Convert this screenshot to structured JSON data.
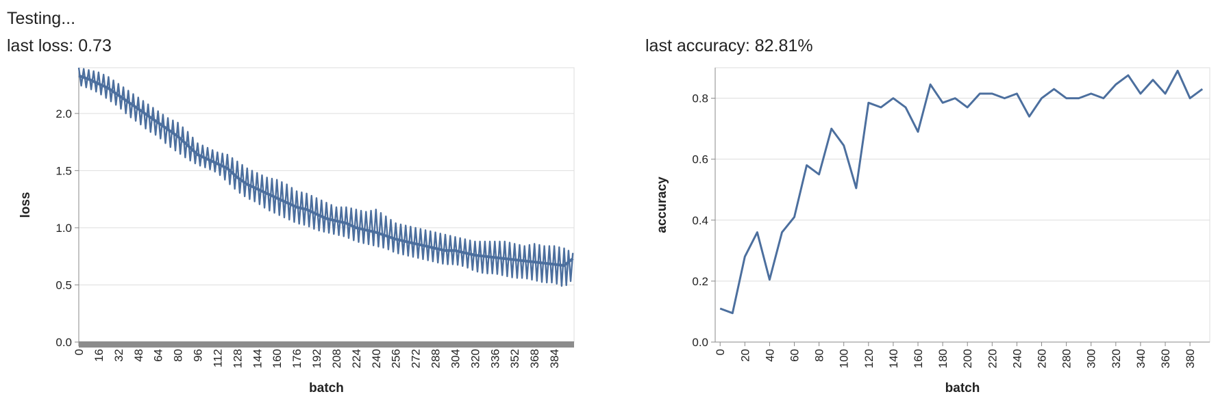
{
  "status": {
    "text": "Testing..."
  },
  "loss_panel": {
    "last_label": "last loss: 0.73"
  },
  "accuracy_panel": {
    "last_label": "last accuracy: 82.81%"
  },
  "colors": {
    "series": "#4c6f9e",
    "grid": "#dddddd",
    "axis": "#888888",
    "text": "#222222"
  },
  "chart_data": [
    {
      "type": "area",
      "title": "",
      "xlabel": "batch",
      "ylabel": "loss",
      "xlim": [
        0,
        400
      ],
      "ylim": [
        0,
        2.4
      ],
      "x_ticks": [
        0,
        16,
        32,
        48,
        64,
        80,
        96,
        112,
        128,
        144,
        160,
        176,
        192,
        208,
        224,
        240,
        256,
        272,
        288,
        304,
        320,
        336,
        352,
        368,
        384
      ],
      "y_ticks": [
        0.0,
        0.5,
        1.0,
        1.5,
        2.0
      ],
      "x_tick_labels": [
        "0",
        "16",
        "32",
        "48",
        "64",
        "80",
        "96",
        "112",
        "128",
        "144",
        "160",
        "176",
        "192",
        "208",
        "224",
        "240",
        "256",
        "272",
        "288",
        "304",
        "320",
        "336",
        "352",
        "368",
        "384"
      ],
      "y_tick_labels": [
        "0.0",
        "0.5",
        "1.0",
        "1.5",
        "2.0"
      ],
      "grid": true,
      "series": [
        {
          "x": [
            0,
            8,
            16,
            24,
            32,
            40,
            48,
            56,
            64,
            72,
            80,
            88,
            96,
            104,
            112,
            120,
            128,
            136,
            144,
            152,
            160,
            168,
            176,
            184,
            192,
            200,
            208,
            216,
            224,
            232,
            240,
            248,
            256,
            264,
            272,
            280,
            288,
            296,
            304,
            312,
            320,
            328,
            336,
            344,
            352,
            360,
            368,
            376,
            384,
            392,
            399
          ],
          "mid": [
            2.33,
            2.3,
            2.26,
            2.22,
            2.16,
            2.1,
            2.04,
            1.98,
            1.92,
            1.86,
            1.8,
            1.72,
            1.64,
            1.6,
            1.56,
            1.52,
            1.44,
            1.38,
            1.34,
            1.3,
            1.26,
            1.22,
            1.18,
            1.16,
            1.12,
            1.08,
            1.06,
            1.04,
            1.0,
            0.98,
            0.96,
            0.93,
            0.9,
            0.88,
            0.86,
            0.84,
            0.82,
            0.8,
            0.8,
            0.78,
            0.76,
            0.75,
            0.74,
            0.73,
            0.72,
            0.71,
            0.7,
            0.69,
            0.68,
            0.67,
            0.73
          ],
          "low": [
            2.25,
            2.22,
            2.18,
            2.12,
            2.06,
            1.98,
            1.92,
            1.85,
            1.8,
            1.72,
            1.66,
            1.6,
            1.55,
            1.52,
            1.48,
            1.4,
            1.32,
            1.26,
            1.22,
            1.16,
            1.12,
            1.08,
            1.04,
            1.02,
            0.98,
            0.96,
            0.94,
            0.92,
            0.88,
            0.86,
            0.84,
            0.82,
            0.78,
            0.76,
            0.74,
            0.72,
            0.7,
            0.68,
            0.68,
            0.66,
            0.62,
            0.6,
            0.6,
            0.58,
            0.56,
            0.56,
            0.54,
            0.52,
            0.52,
            0.48,
            0.55
          ],
          "high": [
            2.4,
            2.38,
            2.36,
            2.32,
            2.26,
            2.2,
            2.14,
            2.08,
            2.02,
            1.96,
            1.92,
            1.84,
            1.74,
            1.7,
            1.66,
            1.64,
            1.58,
            1.52,
            1.48,
            1.44,
            1.42,
            1.38,
            1.32,
            1.3,
            1.26,
            1.22,
            1.18,
            1.18,
            1.16,
            1.14,
            1.16,
            1.1,
            1.04,
            1.02,
            1.0,
            0.98,
            0.96,
            0.94,
            0.92,
            0.9,
            0.88,
            0.88,
            0.88,
            0.88,
            0.86,
            0.84,
            0.86,
            0.84,
            0.84,
            0.82,
            0.78
          ]
        }
      ]
    },
    {
      "type": "line",
      "title": "",
      "xlabel": "batch",
      "ylabel": "accuracy",
      "xlim": [
        -4,
        396
      ],
      "ylim": [
        0,
        0.9
      ],
      "x_ticks": [
        0,
        20,
        40,
        60,
        80,
        100,
        120,
        140,
        160,
        180,
        200,
        220,
        240,
        260,
        280,
        300,
        320,
        340,
        360,
        380
      ],
      "y_ticks": [
        0.0,
        0.2,
        0.4,
        0.6,
        0.8
      ],
      "x_tick_labels": [
        "0",
        "20",
        "40",
        "60",
        "80",
        "100",
        "120",
        "140",
        "160",
        "180",
        "200",
        "220",
        "240",
        "260",
        "280",
        "300",
        "320",
        "340",
        "360",
        "380"
      ],
      "y_tick_labels": [
        "0.0",
        "0.2",
        "0.4",
        "0.6",
        "0.8"
      ],
      "grid": true,
      "series": [
        {
          "x": [
            0,
            10,
            20,
            30,
            40,
            50,
            60,
            70,
            80,
            90,
            100,
            110,
            120,
            130,
            140,
            150,
            160,
            170,
            180,
            190,
            200,
            210,
            220,
            230,
            240,
            250,
            260,
            270,
            280,
            290,
            300,
            310,
            320,
            330,
            340,
            350,
            360,
            370,
            380,
            390
          ],
          "y": [
            0.11,
            0.095,
            0.28,
            0.36,
            0.205,
            0.36,
            0.41,
            0.58,
            0.55,
            0.7,
            0.645,
            0.505,
            0.785,
            0.77,
            0.8,
            0.77,
            0.69,
            0.845,
            0.785,
            0.8,
            0.77,
            0.815,
            0.815,
            0.8,
            0.815,
            0.74,
            0.8,
            0.83,
            0.8,
            0.8,
            0.815,
            0.8,
            0.845,
            0.875,
            0.815,
            0.86,
            0.815,
            0.89,
            0.8,
            0.83
          ]
        }
      ]
    }
  ]
}
